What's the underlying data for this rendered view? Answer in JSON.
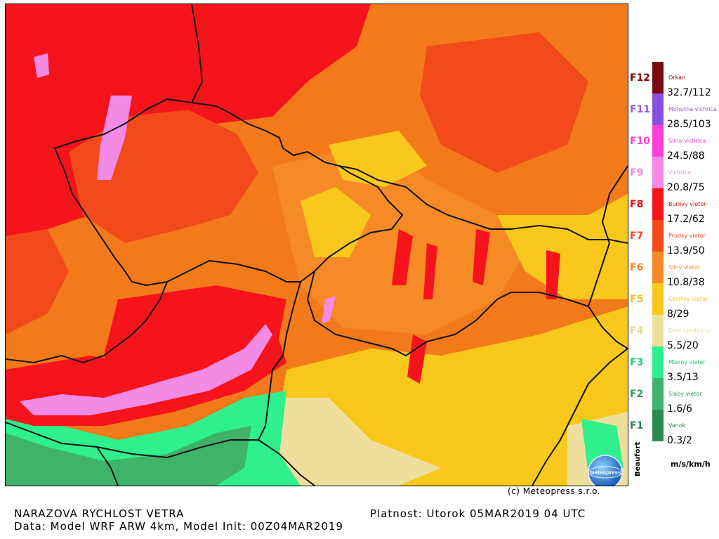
{
  "header": {
    "title": "NARAZOVA RYCHLOST VETRA",
    "subtitle": "Data: Model WRF ARW 4km, Model Init: 00Z04MAR2019",
    "validity": "Platnost: Utorok 05MAR2019 04 UTC",
    "copyright": "(c) Meteopress s.r.o.",
    "logo_text": "meteopress"
  },
  "legend": {
    "axis_label": "Beaufort",
    "units": "m/s/km/h",
    "classes": [
      {
        "f": "F12",
        "name": "Orkan",
        "color": "#7a0a10",
        "fcolor": "#8b0000",
        "value": "32.7/112"
      },
      {
        "f": "F11",
        "name": "Mohutna vichrica",
        "color": "#8a4fe0",
        "fcolor": "#9b59d9",
        "value": "28.5/103"
      },
      {
        "f": "F10",
        "name": "Silna vichrica",
        "color": "#ff3fd8",
        "fcolor": "#ff3fd8",
        "value": "24.5/88"
      },
      {
        "f": "F9",
        "name": "Vichrica",
        "color": "#f28ae6",
        "fcolor": "#e98ad6",
        "value": "20.8/75"
      },
      {
        "f": "F8",
        "name": "Burlivy vietor",
        "color": "#f5141b",
        "fcolor": "#e01010",
        "value": "17.2/62"
      },
      {
        "f": "F7",
        "name": "Prudky vietor",
        "color": "#f24a1a",
        "fcolor": "#ef4b18",
        "value": "13.9/50"
      },
      {
        "f": "F6",
        "name": "Silny vietor",
        "color": "#f58a26",
        "fcolor": "#f28a22",
        "value": "10.8/38"
      },
      {
        "f": "F5",
        "name": "Cerstvy vietor",
        "color": "#f9c81c",
        "fcolor": "#f3c31a",
        "value": "8/29"
      },
      {
        "f": "F4",
        "name": "Dost cerstvy v.",
        "color": "#eee09c",
        "fcolor": "#e6d890",
        "value": "5.5/20"
      },
      {
        "f": "F3",
        "name": "Mierny vietor",
        "color": "#2ff08c",
        "fcolor": "#22cc77",
        "value": "3.5/13"
      },
      {
        "f": "F2",
        "name": "Slaby vietor",
        "color": "#3fb36a",
        "fcolor": "#2aa05c",
        "value": "1.6/6"
      },
      {
        "f": "F1",
        "name": "Vanok",
        "color": "#2c8a4f",
        "fcolor": "#208a50",
        "value": "0.3/2"
      }
    ]
  }
}
